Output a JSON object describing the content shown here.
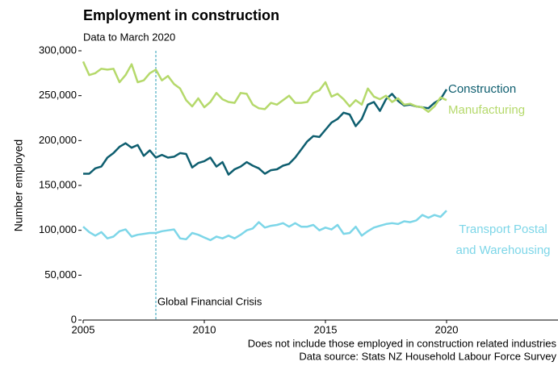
{
  "chart_data": {
    "type": "line",
    "title": "Employment in construction",
    "subtitle": "Data to March 2020",
    "y_label": "Number employed",
    "footnotes": [
      "Does not include those employed in construction related industries",
      "Data source: Stats NZ Household Labour Force Survey"
    ],
    "annotation": {
      "x": 2008,
      "label": "Global Financial Crisis",
      "color": "#2a9db5"
    },
    "x": [
      2005,
      2005.25,
      2005.5,
      2005.75,
      2006,
      2006.25,
      2006.5,
      2006.75,
      2007,
      2007.25,
      2007.5,
      2007.75,
      2008,
      2008.25,
      2008.5,
      2008.75,
      2009,
      2009.25,
      2009.5,
      2009.75,
      2010,
      2010.25,
      2010.5,
      2010.75,
      2011,
      2011.25,
      2011.5,
      2011.75,
      2012,
      2012.25,
      2012.5,
      2012.75,
      2013,
      2013.25,
      2013.5,
      2013.75,
      2014,
      2014.25,
      2014.5,
      2014.75,
      2015,
      2015.25,
      2015.5,
      2015.75,
      2016,
      2016.25,
      2016.5,
      2016.75,
      2017,
      2017.25,
      2017.5,
      2017.75,
      2018,
      2018.25,
      2018.5,
      2018.75,
      2019,
      2019.25,
      2019.5,
      2019.75,
      2020
    ],
    "series": [
      {
        "name": "Construction",
        "color": "#0e5e6f",
        "values": [
          163000,
          163000,
          169000,
          171000,
          181000,
          186000,
          193000,
          197000,
          192000,
          195000,
          183000,
          189000,
          181000,
          184000,
          181000,
          182000,
          186000,
          185000,
          170000,
          175000,
          177000,
          181000,
          171000,
          176000,
          162000,
          168000,
          171000,
          176000,
          172000,
          169000,
          163000,
          167000,
          168000,
          172000,
          174000,
          181000,
          190000,
          199000,
          205000,
          204000,
          212000,
          220000,
          224000,
          231000,
          229000,
          216000,
          224000,
          240000,
          243000,
          233000,
          246000,
          252000,
          244000,
          239000,
          240000,
          238000,
          237000,
          236000,
          242000,
          246000,
          257000
        ]
      },
      {
        "name": "Manufacturing",
        "color": "#b5d96b",
        "values": [
          288000,
          273000,
          275000,
          280000,
          279000,
          280000,
          265000,
          273000,
          285000,
          265000,
          267000,
          275000,
          279000,
          267000,
          272000,
          263000,
          258000,
          245000,
          238000,
          247000,
          237000,
          243000,
          253000,
          246000,
          243000,
          242000,
          253000,
          252000,
          240000,
          236000,
          235000,
          242000,
          240000,
          245000,
          250000,
          242000,
          242000,
          243000,
          253000,
          256000,
          265000,
          249000,
          252000,
          246000,
          238000,
          245000,
          240000,
          258000,
          249000,
          246000,
          250000,
          243000,
          247000,
          240000,
          241000,
          238000,
          237000,
          232000,
          238000,
          248000,
          245000
        ]
      },
      {
        "name": "Transport Postal and Warehousing",
        "color": "#7dd6e8",
        "values": [
          104000,
          98000,
          94000,
          98000,
          91000,
          93000,
          99000,
          101000,
          93000,
          95000,
          96000,
          97000,
          97000,
          99000,
          100000,
          101000,
          91000,
          90000,
          97000,
          95000,
          92000,
          89000,
          93000,
          91000,
          94000,
          91000,
          95000,
          100000,
          102000,
          109000,
          103000,
          105000,
          106000,
          108000,
          104000,
          108000,
          104000,
          104000,
          106000,
          100000,
          103000,
          101000,
          106000,
          96000,
          97000,
          104000,
          94000,
          99000,
          103000,
          105000,
          107000,
          108000,
          107000,
          110000,
          109000,
          111000,
          117000,
          114000,
          117000,
          115000,
          122000
        ]
      }
    ],
    "xlim": [
      2005,
      2024.6
    ],
    "xticks": [
      2005,
      2010,
      2015,
      2020
    ],
    "ylim": [
      0,
      300000
    ],
    "yticks": [
      0,
      {
        "value": 50000,
        "label": "50,000"
      },
      {
        "value": 100000,
        "label": "100,000"
      },
      {
        "value": 150000,
        "label": "150,000"
      },
      {
        "value": 200000,
        "label": "200,000"
      },
      {
        "value": 250000,
        "label": "250,000"
      },
      {
        "value": 300000,
        "label": "300,000"
      }
    ],
    "grid": false
  }
}
